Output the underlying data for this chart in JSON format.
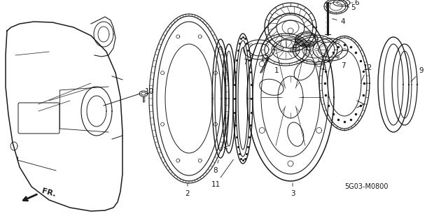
{
  "fig_width": 6.4,
  "fig_height": 3.19,
  "dpi": 100,
  "bg": "#ffffff",
  "diagram_code": "5G03-M0800",
  "lw_main": 0.9,
  "lw_thin": 0.5,
  "lw_thick": 1.2
}
